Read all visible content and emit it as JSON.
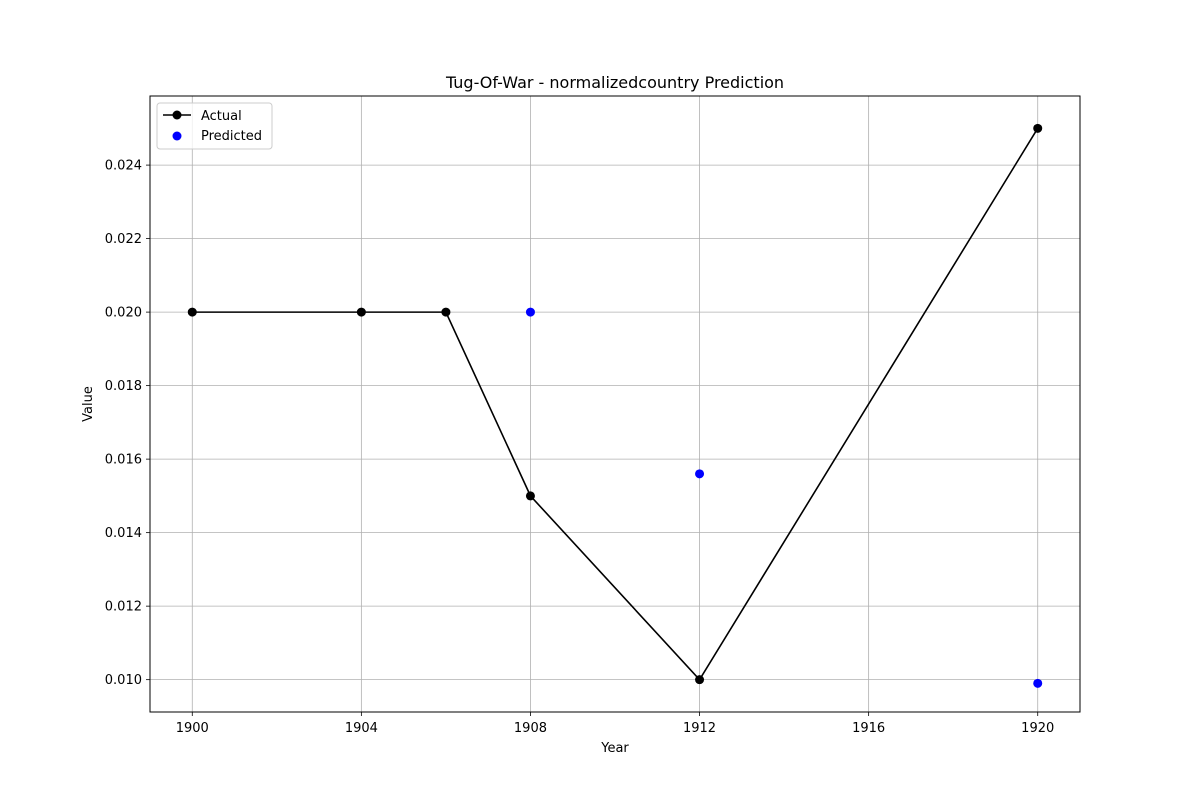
{
  "chart_data": {
    "type": "line",
    "title": "Tug-Of-War - normalizedcountry Prediction",
    "xlabel": "Year",
    "ylabel": "Value",
    "xlim": [
      1899,
      1921
    ],
    "ylim": [
      0.00912,
      0.02588
    ],
    "xticks": [
      1900,
      1904,
      1908,
      1912,
      1916,
      1920
    ],
    "xtick_labels": [
      "1900",
      "1904",
      "1908",
      "1912",
      "1916",
      "1920"
    ],
    "yticks": [
      0.01,
      0.012,
      0.014,
      0.016,
      0.018,
      0.02,
      0.022,
      0.024
    ],
    "ytick_labels": [
      "0.010",
      "0.012",
      "0.014",
      "0.016",
      "0.018",
      "0.020",
      "0.022",
      "0.024"
    ],
    "grid": true,
    "legend_position": "top-left",
    "series": [
      {
        "name": "Actual",
        "style": "line-with-markers",
        "color": "#000000",
        "x": [
          1900,
          1904,
          1906,
          1908,
          1912,
          1920
        ],
        "y": [
          0.02,
          0.02,
          0.02,
          0.015,
          0.01,
          0.025
        ]
      },
      {
        "name": "Predicted",
        "style": "scatter",
        "color": "#0000ff",
        "x": [
          1908,
          1912,
          1920
        ],
        "y": [
          0.02,
          0.0156,
          0.0099
        ]
      }
    ]
  }
}
